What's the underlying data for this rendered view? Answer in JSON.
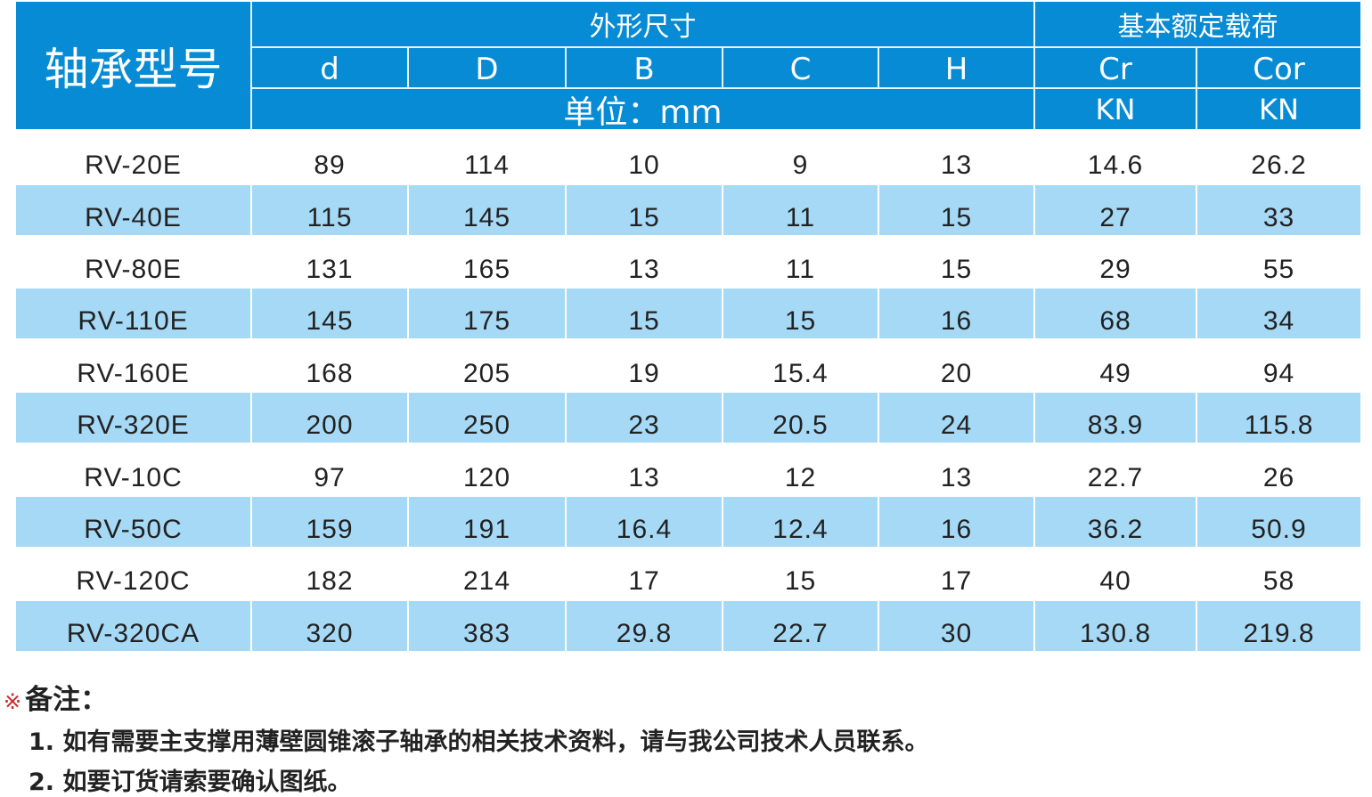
{
  "header": {
    "model": "轴承型号",
    "dimensions": "外形尺寸",
    "load": "基本额定载荷",
    "columns": [
      "d",
      "D",
      "B",
      "C",
      "H",
      "Cr",
      "Cor"
    ],
    "unit_mm": "单位：mm",
    "unit_kn": "KN"
  },
  "rows": [
    [
      "RV-20E",
      "89",
      "114",
      "10",
      "9",
      "13",
      "14.6",
      "26.2"
    ],
    [
      "RV-40E",
      "115",
      "145",
      "15",
      "11",
      "15",
      "27",
      "33"
    ],
    [
      "RV-80E",
      "131",
      "165",
      "13",
      "11",
      "15",
      "29",
      "55"
    ],
    [
      "RV-110E",
      "145",
      "175",
      "15",
      "15",
      "16",
      "68",
      "34"
    ],
    [
      "RV-160E",
      "168",
      "205",
      "19",
      "15.4",
      "20",
      "49",
      "94"
    ],
    [
      "RV-320E",
      "200",
      "250",
      "23",
      "20.5",
      "24",
      "83.9",
      "115.8"
    ],
    [
      "RV-10C",
      "97",
      "120",
      "13",
      "12",
      "13",
      "22.7",
      "26"
    ],
    [
      "RV-50C",
      "159",
      "191",
      "16.4",
      "12.4",
      "16",
      "36.2",
      "50.9"
    ],
    [
      "RV-120C",
      "182",
      "214",
      "17",
      "15",
      "17",
      "40",
      "58"
    ],
    [
      "RV-320CA",
      "320",
      "383",
      "29.8",
      "22.7",
      "30",
      "130.8",
      "219.8"
    ]
  ],
  "notes": {
    "mark": "※",
    "title": "备注：",
    "lines": [
      "1. 如有需要主支撑用薄壁圆锥滚子轴承的相关技术资料，请与我公司技术人员联系。",
      "2. 如要订货请索要确认图纸。"
    ]
  },
  "colors": {
    "header": "#078bd4",
    "stripe": "#a5d9f6"
  }
}
